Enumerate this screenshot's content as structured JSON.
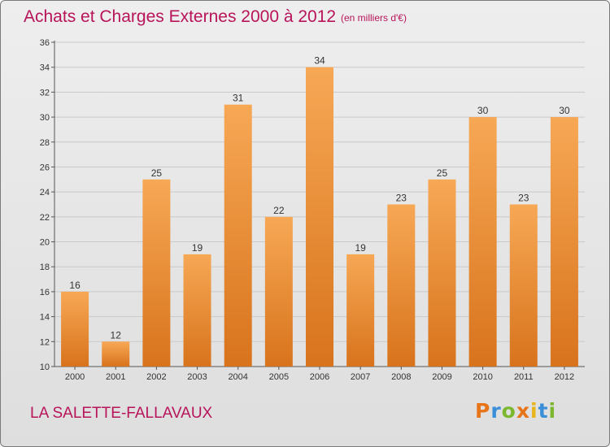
{
  "header": {
    "title": "Achats et Charges Externes 2000 à 2012",
    "subtitle": "(en milliers d'€)"
  },
  "footer": {
    "commune": "LA SALETTE-FALLAVAUX",
    "logo": "Proxiti"
  },
  "colors": {
    "title": "#b8145a",
    "bar_top": "#f7a855",
    "bar_bottom": "#d8731c",
    "grid": "#c9c9c9",
    "logo_letters": [
      "#e8741a",
      "#3a8fd8",
      "#7cb82f",
      "#e8741a",
      "#e8b41a",
      "#3a8fd8",
      "#7cb82f"
    ]
  },
  "chart_data": {
    "type": "bar",
    "title": "Achats et Charges Externes 2000 à 2012",
    "subtitle": "(en milliers d'€)",
    "categories": [
      "2000",
      "2001",
      "2002",
      "2003",
      "2004",
      "2005",
      "2006",
      "2007",
      "2008",
      "2009",
      "2010",
      "2011",
      "2012"
    ],
    "values": [
      16,
      12,
      25,
      19,
      31,
      22,
      34,
      19,
      23,
      25,
      30,
      23,
      30
    ],
    "xlabel": "",
    "ylabel": "",
    "ylim": [
      10,
      36
    ],
    "yticks": [
      10,
      12,
      14,
      16,
      18,
      20,
      22,
      24,
      26,
      28,
      30,
      32,
      34,
      36
    ],
    "grid": true,
    "data_labels": true
  }
}
